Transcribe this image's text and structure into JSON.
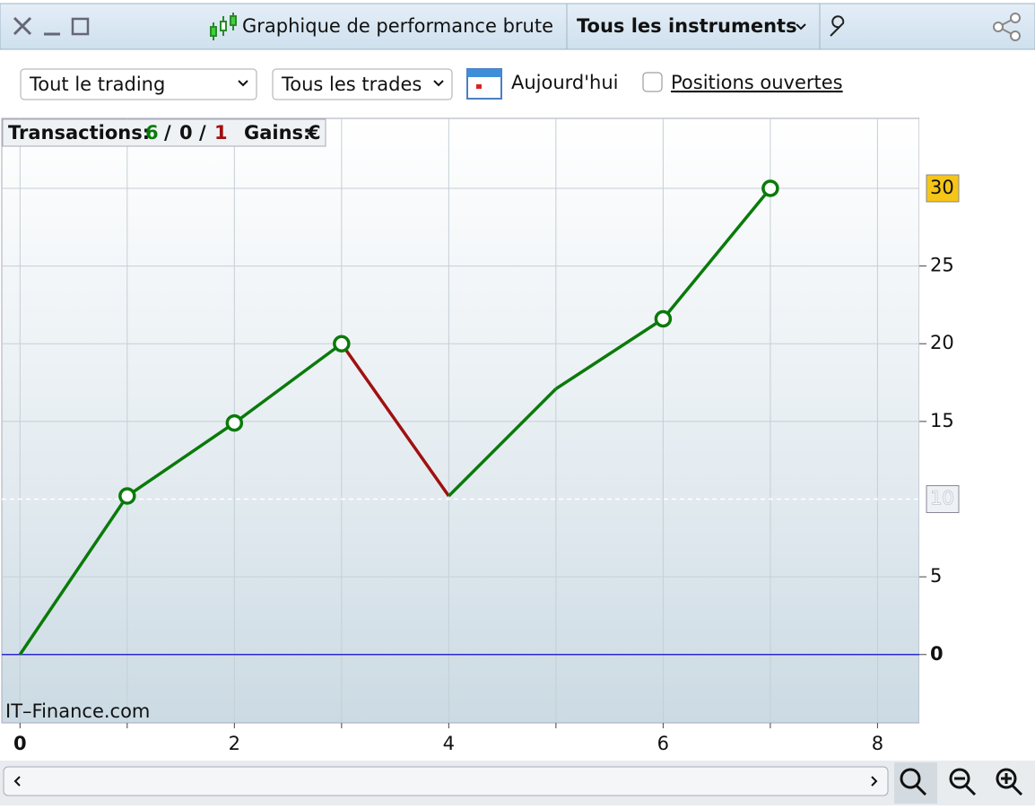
{
  "window": {
    "title": "Graphique de performance brute",
    "instrument_menu": "Tous les instruments"
  },
  "toolbar": {
    "scope_select": "Tout le trading",
    "trades_select": "Tous les trades",
    "date_button": "Aujourd'hui",
    "open_positions_checkbox": {
      "label": "Positions ouvertes",
      "checked": false
    }
  },
  "summary": {
    "transactions_label": "Transactions:",
    "wins": 6,
    "separator": "/",
    "neutral": 0,
    "losses": 1,
    "gains_label": "Gains:",
    "currency": "€"
  },
  "watermark": "IT–Finance.com",
  "chart_data": {
    "type": "line",
    "x": [
      0,
      1,
      2,
      3,
      4,
      5,
      6,
      7
    ],
    "series": [
      {
        "color": "#0a7a0a",
        "values": [
          0,
          10.2,
          14.9,
          20,
          10.2,
          17.1,
          21.6,
          30
        ],
        "segment_colors": [
          "#0a7a0a",
          "#0a7a0a",
          "#0a7a0a",
          "#a01010",
          "#0a7a0a",
          "#0a7a0a",
          "#0a7a0a"
        ],
        "markers": [
          false,
          true,
          true,
          true,
          false,
          false,
          true,
          true
        ]
      }
    ],
    "xlim": [
      -0.17,
      8.39
    ],
    "ylim": [
      -4.4,
      34.5
    ],
    "xticks": [
      0,
      2,
      4,
      6,
      8
    ],
    "x_minor_ticks": [
      1,
      3,
      5,
      7
    ],
    "yticks": [
      0,
      5,
      15,
      20,
      25
    ],
    "reference_line": 10,
    "zero_line_color": "#2a2ad0",
    "grid": true
  }
}
